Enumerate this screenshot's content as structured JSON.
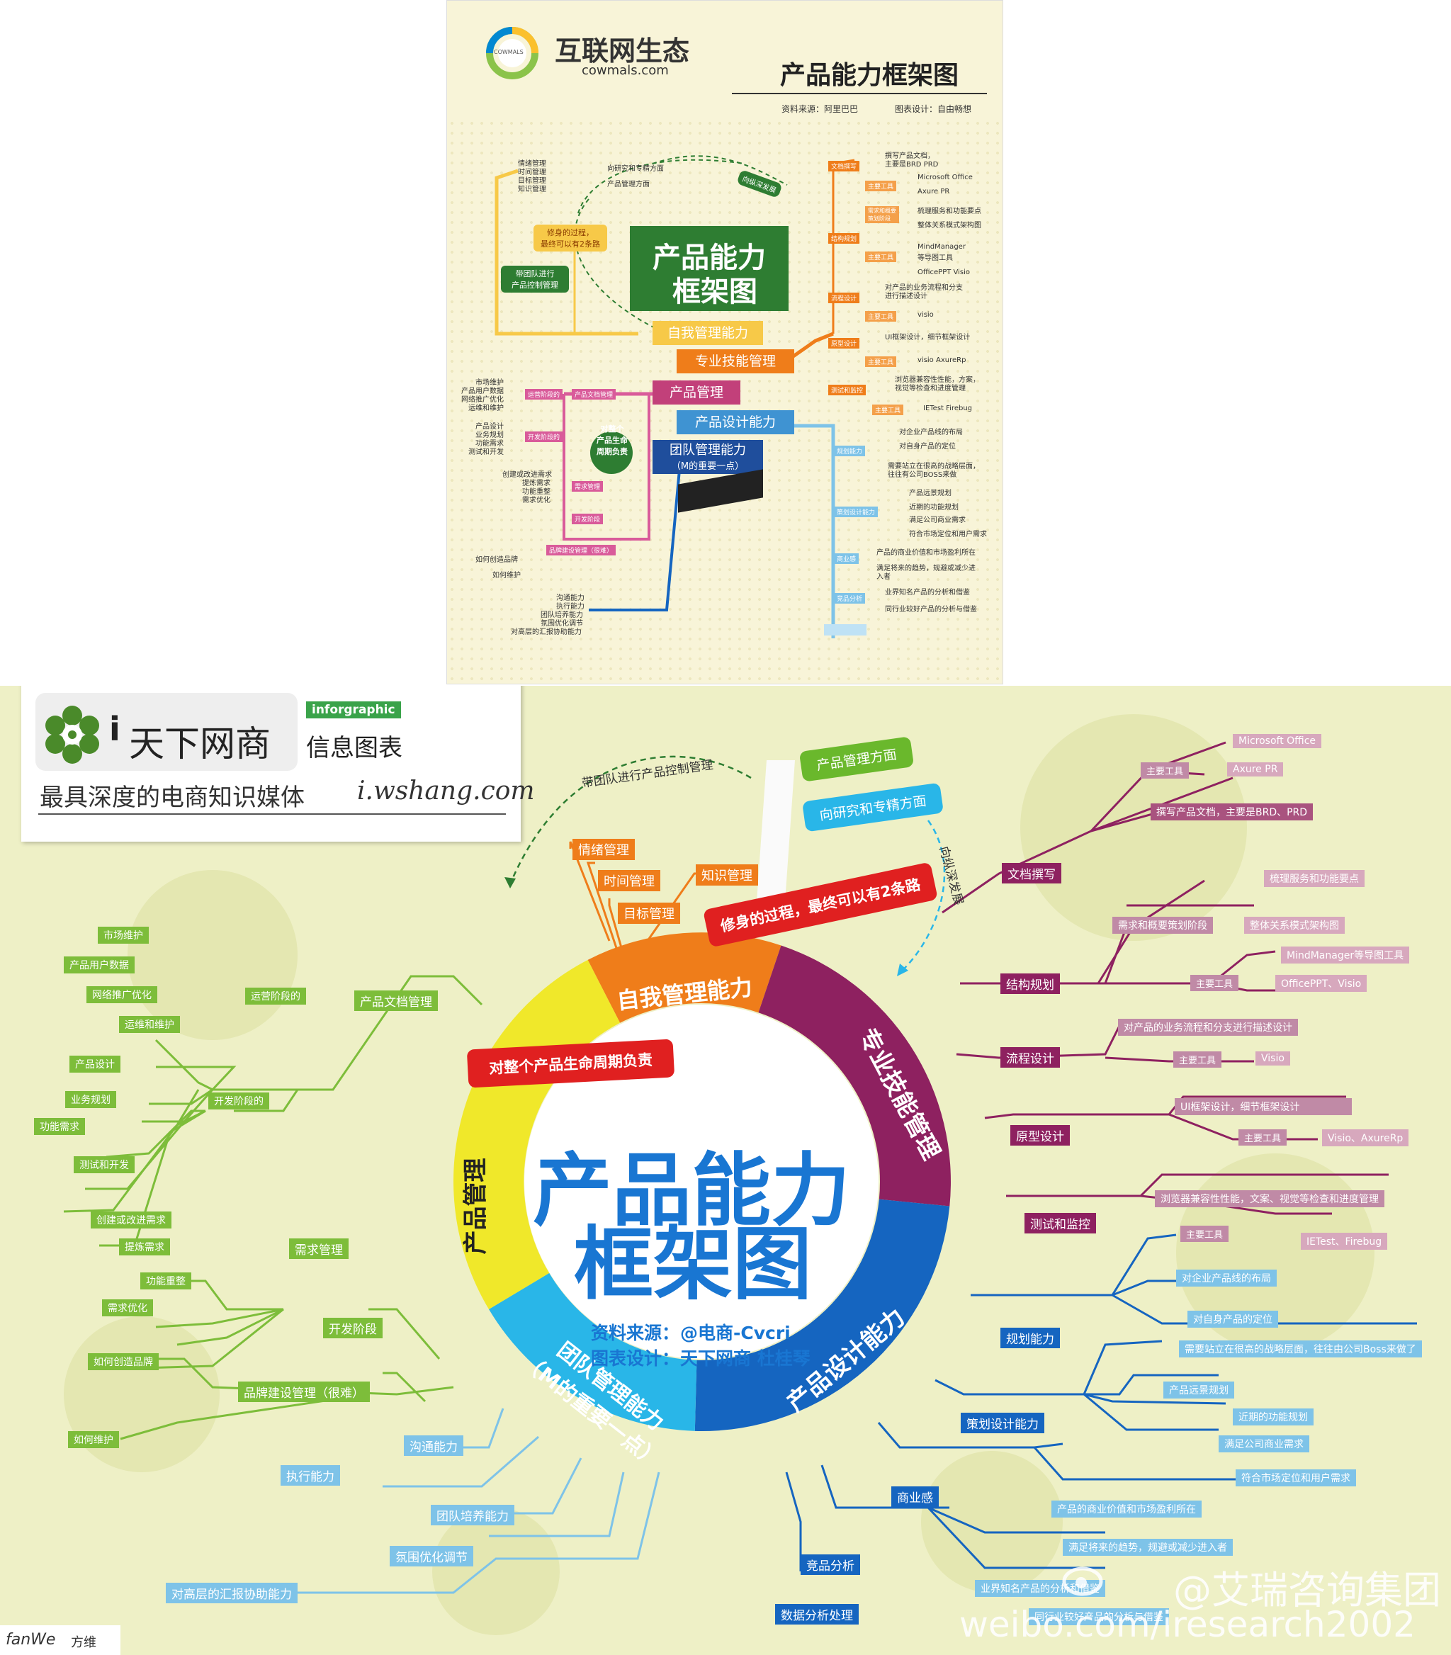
{
  "top": {
    "brand_name": "互联网生态",
    "brand_url": "cowmals.com",
    "brand_logo_text": "COWMALS",
    "title": "产品能力框架图",
    "source": "资料来源：阿里巴巴",
    "design": "图表设计：自由畅想",
    "center_title_1": "产品能力",
    "center_title_2": "框架图",
    "steps": [
      "自我管理能力",
      "专业技能管理",
      "产品管理",
      "产品设计能力",
      "团队管理能力",
      "（M的重要一点）"
    ],
    "left_self": [
      "情绪管理",
      "时间管理",
      "目标管理",
      "知识管理"
    ],
    "tag_xiushen": "修身的过程，\n最终可以有2条路",
    "tag_daituandui": "带团队进行\n产品控制管理",
    "top_dir1": "向研究和专精方面",
    "top_dir2": "产品管理方面",
    "top_zongxiang": "向纵深发展",
    "right_pro": [
      {
        "tag": "文档撰写",
        "items": [
          "撰写产品文档，",
          "主要是BRD PRD"
        ]
      },
      {
        "tag": "主要工具",
        "items": [
          "Microsoft Office",
          "Axure PR"
        ]
      },
      {
        "tag": "需求和概要\n策划阶段",
        "items": [
          "梳理服务和功能要点",
          "整体关系模式架构图"
        ]
      },
      {
        "tag": "结构规划",
        "items": []
      },
      {
        "tag": "主要工具",
        "items": [
          "MindManager",
          "等导图工具",
          "OfficePPT Visio"
        ]
      },
      {
        "tag": "流程设计",
        "items": [
          "对产品的业务流程和分支",
          "进行描述设计"
        ]
      },
      {
        "tag": "主要工具",
        "items": [
          "visio"
        ]
      },
      {
        "tag": "原型设计",
        "items": [
          "UI框架设计，细节框架设计"
        ]
      },
      {
        "tag": "主要工具",
        "items": [
          "visio AxureRp"
        ]
      },
      {
        "tag": "测试和监控",
        "items": [
          "浏览器兼容性性能，方案，",
          "视觉等检查和进度管理"
        ]
      },
      {
        "tag": "主要工具",
        "items": [
          "IETest Firebug"
        ]
      }
    ],
    "right_design": [
      {
        "tag": "规划能力",
        "items": [
          "对企业产品线的布局",
          "对自身产品的定位",
          "需要站立在很高的战略层面，",
          "往往有公司BOSS来做"
        ]
      },
      {
        "tag": "策划设计能力",
        "items": [
          "产品远景规划",
          "近期的功能规划",
          "满足公司商业需求",
          "符合市场定位和用户需求"
        ]
      },
      {
        "tag": "商业感",
        "items": [
          "产品的商业价值和市场盈利所在",
          "满足将来的趋势，规避或减少进",
          "入者"
        ]
      },
      {
        "tag": "竞品分析",
        "items": [
          "业界知名产品的分析和借鉴",
          "同行业较好产品的分析与借鉴"
        ]
      }
    ],
    "left_pm_ops_tag": "运营阶段的",
    "left_pm_doc_tag": "产品文档管理",
    "left_pm_ops": [
      "市场维护",
      "产品用户数据",
      "网络推广优化",
      "运维和维护"
    ],
    "left_pm_dev_tag": "开发阶段的",
    "left_pm_dev": [
      "产品设计",
      "业务规划",
      "功能需求",
      "测试和开发"
    ],
    "circle_text": "对整个\n产品生命\n周期负责",
    "req_tag": "需求管理",
    "req_items": [
      "创建或改进需求",
      "提炼需求",
      "功能重整",
      "需求优化"
    ],
    "dev_tag": "开发阶段",
    "brand_tag": "品牌建设管理（很难）",
    "brand_items": [
      "如何创造品牌",
      "如何维护"
    ],
    "team_items": [
      "沟通能力",
      "执行能力",
      "团队培养能力",
      "氛围优化调节",
      "对高层的汇报协助能力"
    ]
  },
  "bottom": {
    "logo_name": "天下网商",
    "logo_badge": "inforgraphic",
    "logo_sub": "信息图表",
    "slogan": "最具深度的电商知识媒体",
    "url": "i.wshang.com",
    "title_1": "产品能力",
    "title_2": "框架图",
    "source_label": "资料来源：",
    "source_value": "@电商-Cvcri",
    "design_label": "图表设计：",
    "design_value": "天下网商  杜桂琴",
    "ring": [
      "自我管理能力",
      "专业技能管理",
      "产品设计能力",
      "团队管理能力\n（M的重要一点）",
      "产品管理"
    ],
    "banner_red1": "修身的过程，最终可以有2条路",
    "banner_red2": "对整个产品生命周期负责",
    "banner_green": "产品管理方面",
    "banner_blue": "向研究和专精方面",
    "arc_left": "带团队进行产品控制管理",
    "arc_right": "向纵深发展",
    "self_items": [
      "情绪管理",
      "时间管理",
      "目标管理",
      "知识管理"
    ],
    "pm": {
      "doc": "产品文档管理",
      "ops": "运营阶段的",
      "ops_items": [
        "市场维护",
        "产品用户数据",
        "网络推广优化",
        "运维和维护"
      ],
      "dev": "开发阶段的",
      "dev_items": [
        "产品设计",
        "业务规划",
        "功能需求",
        "测试和开发"
      ],
      "req": "需求管理",
      "req_items": [
        "创建或改进需求",
        "提炼需求",
        "功能重整",
        "需求优化"
      ],
      "devstage": "开发阶段",
      "brand": "品牌建设管理（很难）",
      "brand_items": [
        "如何创造品牌",
        "如何维护"
      ]
    },
    "pro": {
      "doc": "文档撰写",
      "tool": "主要工具",
      "doc_tools": [
        "Microsoft Office",
        "Axure PR"
      ],
      "doc_desc": "撰写产品文档，主要是BRD、PRD",
      "struct": "结构规划",
      "struct_stage": "需求和概要策划阶段",
      "struct_items": [
        "梳理服务和功能要点",
        "整体关系模式架构图"
      ],
      "struct_tools": [
        "MindManager等导图工具",
        "OfficePPT、Visio"
      ],
      "flow": "流程设计",
      "flow_desc": "对产品的业务流程和分支进行描述设计",
      "flow_tool": "Visio",
      "proto": "原型设计",
      "proto_desc": "UI框架设计，细节框架设计",
      "proto_tool": "Visio、AxureRp",
      "test": "测试和监控",
      "test_desc": "浏览器兼容性性能，文案、视觉等检查和进度管理",
      "test_tool": "IETest、Firebug"
    },
    "design": {
      "plan": "规划能力",
      "plan_items": [
        "对企业产品线的布局",
        "对自身产品的定位",
        "需要站立在很高的战略层面，往往由公司Boss来做了"
      ],
      "strategy": "策划设计能力",
      "strategy_items": [
        "产品远景规划",
        "近期的功能规划",
        "满足公司商业需求",
        "符合市场定位和用户需求"
      ],
      "biz": "商业感",
      "biz_items": [
        "产品的商业价值和市场盈利所在",
        "满足将来的趋势，规避或减少进入者"
      ],
      "comp": "竞品分析",
      "comp_items": [
        "业界知名产品的分析和借鉴",
        "同行业较好产品的分析与借鉴"
      ],
      "data": "数据分析处理"
    },
    "team": [
      "沟通能力",
      "执行能力",
      "团队培养能力",
      "氛围优化调节",
      "对高层的汇报协助能力"
    ],
    "footer_logo": "fanWe",
    "footer_name": "方维",
    "watermark_1": "@艾瑞咨询集团",
    "watermark_2": "weibo.com/iresearch2002"
  },
  "colors": {
    "orange": "#ef7d1a",
    "purple": "#8e2160",
    "blue": "#1565c0",
    "cyan": "#29b6e8",
    "yellow": "#f0e82a",
    "green": "#7dbd3a",
    "dark_green": "#2e7d32",
    "red": "#e02020",
    "title_blue": "#1976d2"
  }
}
